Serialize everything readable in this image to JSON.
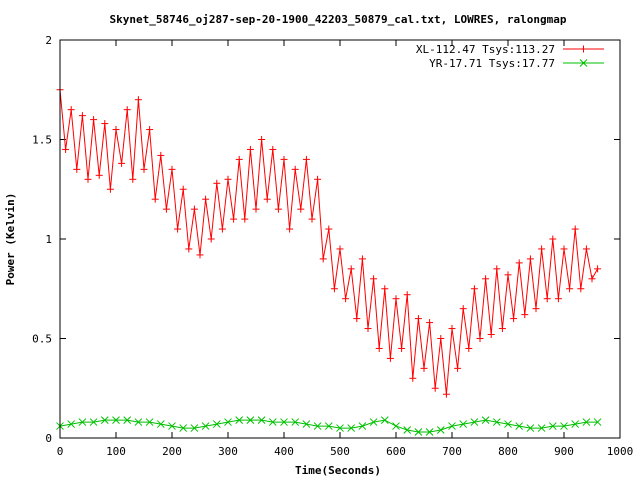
{
  "chart_data": {
    "type": "line",
    "title": "Skynet_58746_oj287-sep-20-1900_42203_50879_cal.txt, LOWRES, ralongmap",
    "xlabel": "Time(Seconds)",
    "ylabel": "Power (Kelvin)",
    "xlim": [
      0,
      1000
    ],
    "ylim": [
      0,
      2
    ],
    "x_ticks": [
      "0",
      "100",
      "200",
      "300",
      "400",
      "500",
      "600",
      "700",
      "800",
      "900",
      "1000"
    ],
    "y_ticks": [
      "0",
      "0.5",
      "1",
      "1.5",
      "2"
    ],
    "grid": false,
    "legend_position": "top-right",
    "series": [
      {
        "name": "XL-112.47 Tsys:113.27",
        "color": "#ff0000",
        "marker": "plus",
        "x": [
          0,
          10,
          20,
          30,
          40,
          50,
          60,
          70,
          80,
          90,
          100,
          110,
          120,
          130,
          140,
          150,
          160,
          170,
          180,
          190,
          200,
          210,
          220,
          230,
          240,
          250,
          260,
          270,
          280,
          290,
          300,
          310,
          320,
          330,
          340,
          350,
          360,
          370,
          380,
          390,
          400,
          410,
          420,
          430,
          440,
          450,
          460,
          470,
          480,
          490,
          500,
          510,
          520,
          530,
          540,
          550,
          560,
          570,
          580,
          590,
          600,
          610,
          620,
          630,
          640,
          650,
          660,
          670,
          680,
          690,
          700,
          710,
          720,
          730,
          740,
          750,
          760,
          770,
          780,
          790,
          800,
          810,
          820,
          830,
          840,
          850,
          860,
          870,
          880,
          890,
          900,
          910,
          920,
          930,
          940,
          950,
          960
        ],
        "y": [
          1.75,
          1.45,
          1.65,
          1.35,
          1.62,
          1.3,
          1.6,
          1.32,
          1.58,
          1.25,
          1.55,
          1.38,
          1.65,
          1.3,
          1.7,
          1.35,
          1.55,
          1.2,
          1.42,
          1.15,
          1.35,
          1.05,
          1.25,
          0.95,
          1.15,
          0.92,
          1.2,
          1.0,
          1.28,
          1.05,
          1.3,
          1.1,
          1.4,
          1.1,
          1.45,
          1.15,
          1.5,
          1.2,
          1.45,
          1.15,
          1.4,
          1.05,
          1.35,
          1.15,
          1.4,
          1.1,
          1.3,
          0.9,
          1.05,
          0.75,
          0.95,
          0.7,
          0.85,
          0.6,
          0.9,
          0.55,
          0.8,
          0.45,
          0.75,
          0.4,
          0.7,
          0.45,
          0.72,
          0.3,
          0.6,
          0.35,
          0.58,
          0.25,
          0.5,
          0.22,
          0.55,
          0.35,
          0.65,
          0.45,
          0.75,
          0.5,
          0.8,
          0.52,
          0.85,
          0.55,
          0.82,
          0.6,
          0.88,
          0.62,
          0.9,
          0.65,
          0.95,
          0.7,
          1.0,
          0.7,
          0.95,
          0.75,
          1.05,
          0.75,
          0.95,
          0.8,
          0.85
        ]
      },
      {
        "name": "YR-17.71 Tsys:17.77",
        "color": "#00c000",
        "marker": "cross",
        "x": [
          0,
          20,
          40,
          60,
          80,
          100,
          120,
          140,
          160,
          180,
          200,
          220,
          240,
          260,
          280,
          300,
          320,
          340,
          360,
          380,
          400,
          420,
          440,
          460,
          480,
          500,
          520,
          540,
          560,
          580,
          600,
          620,
          640,
          660,
          680,
          700,
          720,
          740,
          760,
          780,
          800,
          820,
          840,
          860,
          880,
          900,
          920,
          940,
          960
        ],
        "y": [
          0.06,
          0.07,
          0.08,
          0.08,
          0.09,
          0.09,
          0.09,
          0.08,
          0.08,
          0.07,
          0.06,
          0.05,
          0.05,
          0.06,
          0.07,
          0.08,
          0.09,
          0.09,
          0.09,
          0.08,
          0.08,
          0.08,
          0.07,
          0.06,
          0.06,
          0.05,
          0.05,
          0.06,
          0.08,
          0.09,
          0.06,
          0.04,
          0.03,
          0.03,
          0.04,
          0.06,
          0.07,
          0.08,
          0.09,
          0.08,
          0.07,
          0.06,
          0.05,
          0.05,
          0.06,
          0.06,
          0.07,
          0.08,
          0.08
        ]
      }
    ]
  }
}
